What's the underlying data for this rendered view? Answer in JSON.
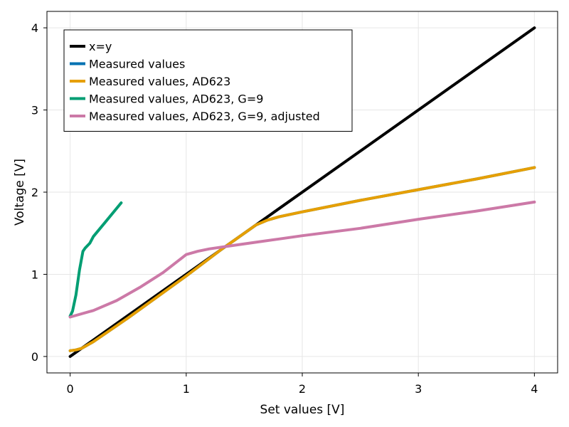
{
  "chart_data": {
    "type": "line",
    "title": "",
    "xlabel": "Set values [V]",
    "ylabel": "Voltage [V]",
    "xlim": [
      -0.2,
      4.2
    ],
    "ylim": [
      -0.2,
      4.2
    ],
    "xticks": [
      0,
      1,
      2,
      3,
      4
    ],
    "yticks": [
      0,
      1,
      2,
      3,
      4
    ],
    "grid": true,
    "legend_position": "top-left",
    "series": [
      {
        "name": "x=y",
        "color": "#000000",
        "x": [
          0,
          4
        ],
        "y": [
          0,
          4
        ]
      },
      {
        "name": "Measured values",
        "color": "#0072b2",
        "x": [
          0,
          0.05,
          0.1,
          0.2,
          0.5,
          1.0,
          1.3,
          1.5,
          1.6,
          1.7,
          1.8,
          2.0,
          2.5,
          3.0,
          3.5,
          4.0
        ],
        "y": [
          0.07,
          0.08,
          0.1,
          0.18,
          0.47,
          0.98,
          1.3,
          1.5,
          1.6,
          1.66,
          1.7,
          1.76,
          1.9,
          2.03,
          2.16,
          2.3
        ]
      },
      {
        "name": "Measured values, AD623",
        "color": "#e69f00",
        "x": [
          0,
          0.05,
          0.1,
          0.2,
          0.5,
          1.0,
          1.3,
          1.5,
          1.6,
          1.7,
          1.8,
          2.0,
          2.5,
          3.0,
          3.5,
          4.0
        ],
        "y": [
          0.07,
          0.08,
          0.1,
          0.18,
          0.47,
          0.98,
          1.3,
          1.5,
          1.6,
          1.66,
          1.7,
          1.76,
          1.9,
          2.03,
          2.16,
          2.3
        ]
      },
      {
        "name": "Measured values, AD623, G=9",
        "color": "#009e73",
        "x": [
          0,
          0.02,
          0.05,
          0.08,
          0.11,
          0.13,
          0.17,
          0.2,
          0.3,
          0.44
        ],
        "y": [
          0.49,
          0.55,
          0.75,
          1.05,
          1.28,
          1.32,
          1.38,
          1.46,
          1.63,
          1.87
        ]
      },
      {
        "name": "Measured values, AD623, G=9, adjusted",
        "color": "#cc79a7",
        "x": [
          0,
          0.2,
          0.4,
          0.6,
          0.8,
          1.0,
          1.1,
          1.2,
          1.4,
          1.6,
          1.8,
          2.0,
          2.5,
          3.0,
          3.5,
          4.0
        ],
        "y": [
          0.48,
          0.56,
          0.68,
          0.84,
          1.02,
          1.24,
          1.28,
          1.31,
          1.35,
          1.39,
          1.43,
          1.47,
          1.56,
          1.67,
          1.77,
          1.88
        ]
      }
    ]
  }
}
